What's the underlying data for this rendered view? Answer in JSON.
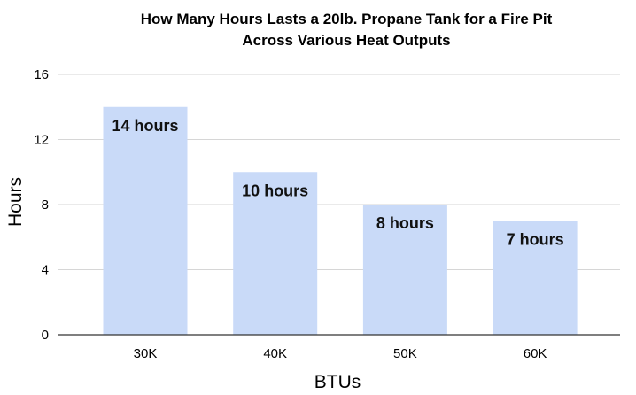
{
  "chart_data": {
    "type": "bar",
    "title_lines": [
      "How Many Hours Lasts a 20lb. Propane Tank for a Fire Pit",
      "Across Various Heat Outputs"
    ],
    "xlabel": "BTUs",
    "ylabel": "Hours",
    "categories": [
      "30K",
      "40K",
      "50K",
      "60K"
    ],
    "values": [
      14,
      10,
      8,
      7
    ],
    "data_labels": [
      "14 hours",
      "10 hours",
      "8 hours",
      "7 hours"
    ],
    "ylim": [
      0,
      16
    ],
    "yticks": [
      "0",
      "4",
      "8",
      "12",
      "16"
    ],
    "grid": true,
    "legend": "none",
    "colors": {
      "bar": "#c9daf8"
    }
  }
}
